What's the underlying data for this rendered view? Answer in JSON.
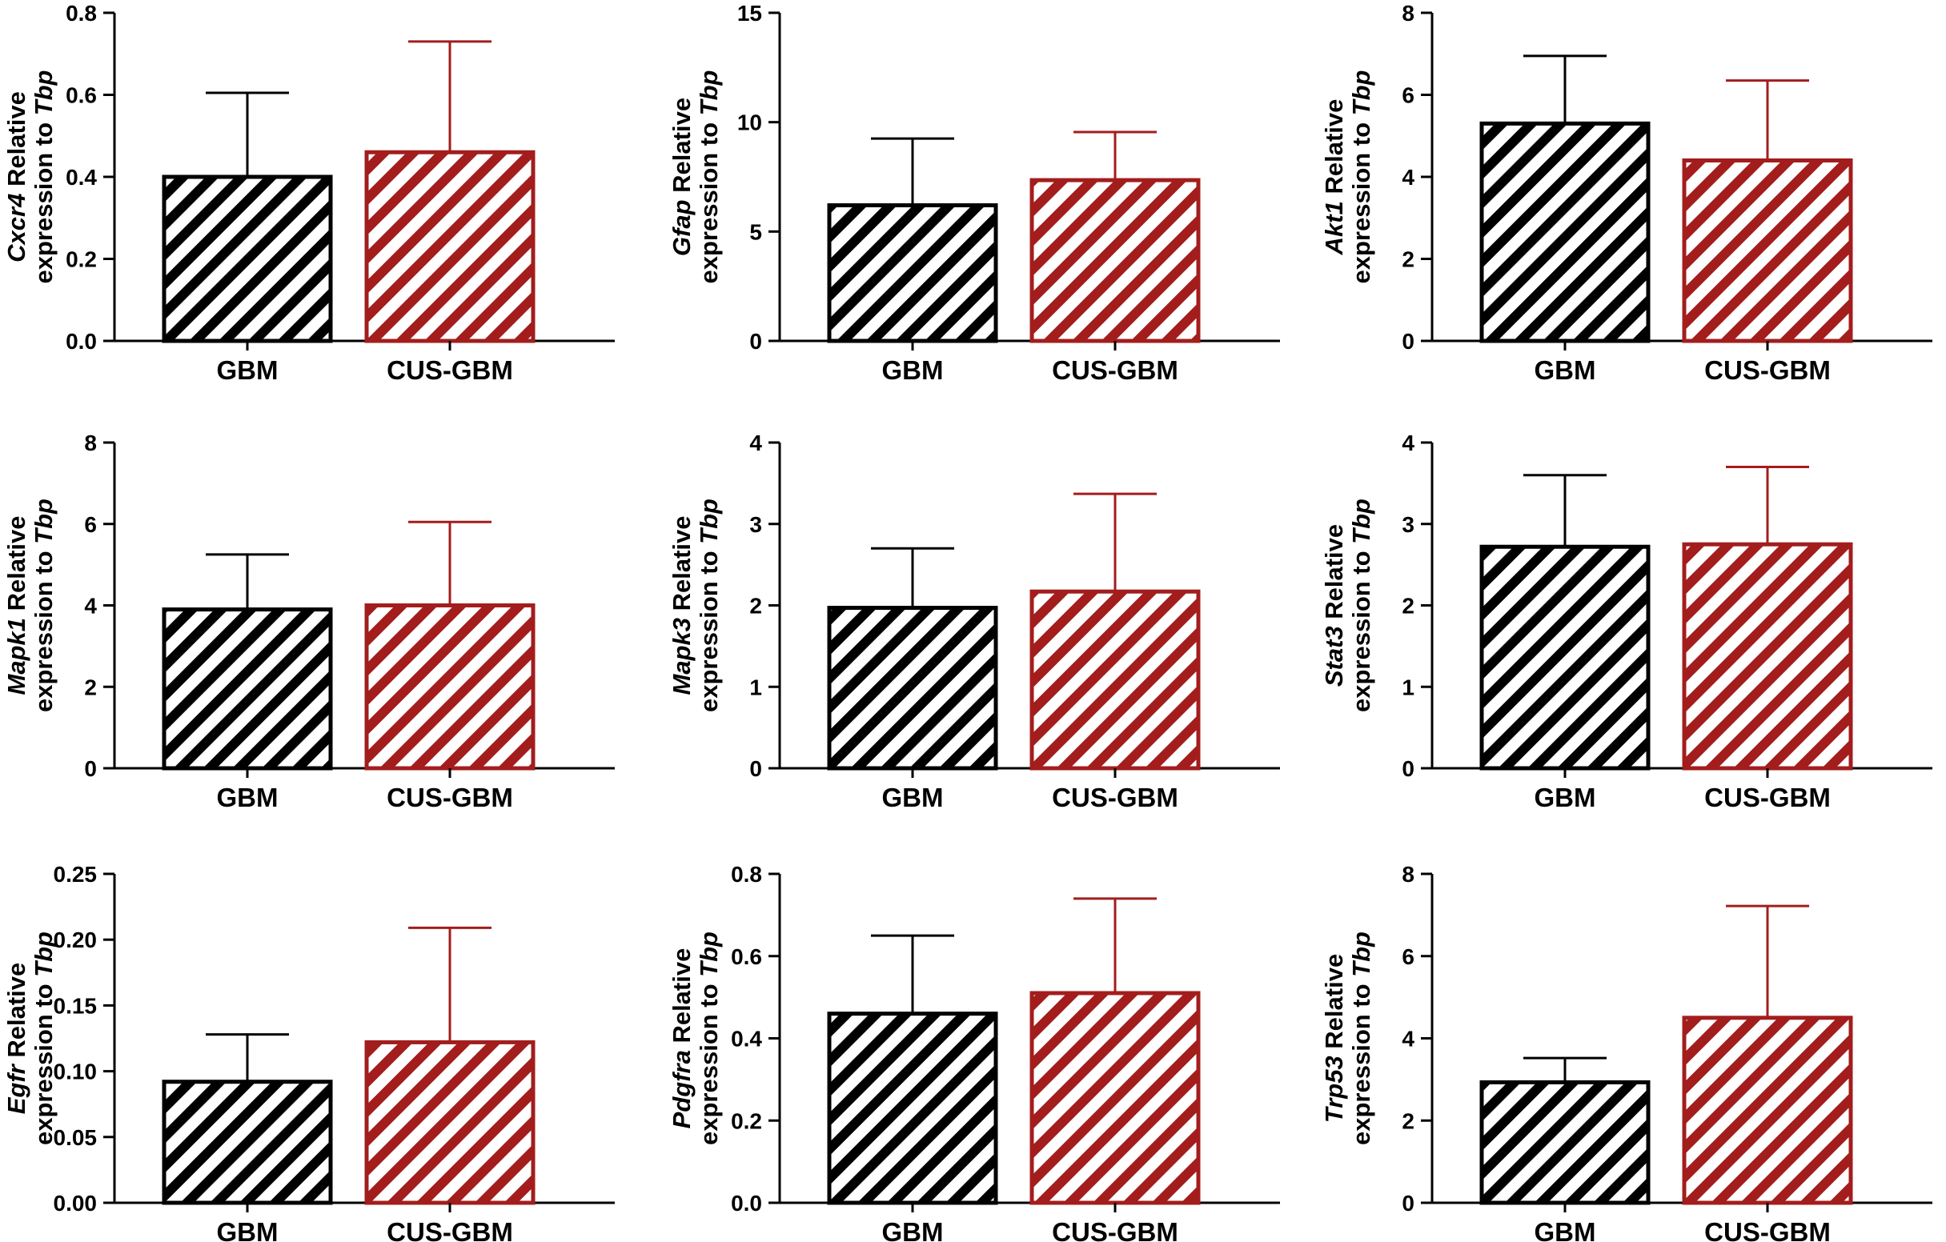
{
  "figure": {
    "ylabel_suffix_line1": "Relative",
    "ylabel_line2_prefix": "expression to",
    "ylabel_reference_gene": "Tbp"
  },
  "colors": {
    "GBM": "#000000",
    "CUS-GBM": "#a31d1d"
  },
  "chart_data": [
    {
      "type": "bar",
      "gene": "Cxcr4",
      "ylabel": "Cxcr4 Relative expression to Tbp",
      "categories": [
        "GBM",
        "CUS-GBM"
      ],
      "values": [
        0.4,
        0.46
      ],
      "errors_upper": [
        0.605,
        0.73
      ],
      "ylim": [
        0,
        0.8
      ],
      "ticks": [
        "0.0",
        "0.2",
        "0.4",
        "0.6",
        "0.8"
      ],
      "tick_values": [
        0,
        0.2,
        0.4,
        0.6,
        0.8
      ]
    },
    {
      "type": "bar",
      "gene": "Gfap",
      "ylabel": "Gfap Relative expression to Tbp",
      "categories": [
        "GBM",
        "CUS-GBM"
      ],
      "values": [
        6.2,
        7.35
      ],
      "errors_upper": [
        9.25,
        9.55
      ],
      "ylim": [
        0,
        15
      ],
      "ticks": [
        "0",
        "5",
        "10",
        "15"
      ],
      "tick_values": [
        0,
        5,
        10,
        15
      ]
    },
    {
      "type": "bar",
      "gene": "Akt1",
      "ylabel": "Akt1 Relative expression to Tbp",
      "categories": [
        "GBM",
        "CUS-GBM"
      ],
      "values": [
        5.3,
        4.4
      ],
      "errors_upper": [
        6.95,
        6.35
      ],
      "ylim": [
        0,
        8
      ],
      "ticks": [
        "0",
        "2",
        "4",
        "6",
        "8"
      ],
      "tick_values": [
        0,
        2,
        4,
        6,
        8
      ]
    },
    {
      "type": "bar",
      "gene": "Mapk1",
      "ylabel": "Mapk1 Relative expression to Tbp",
      "categories": [
        "GBM",
        "CUS-GBM"
      ],
      "values": [
        3.9,
        4.0
      ],
      "errors_upper": [
        5.25,
        6.05
      ],
      "ylim": [
        0,
        8
      ],
      "ticks": [
        "0",
        "2",
        "4",
        "6",
        "8"
      ],
      "tick_values": [
        0,
        2,
        4,
        6,
        8
      ]
    },
    {
      "type": "bar",
      "gene": "Mapk3",
      "ylabel": "Mapk3 Relative expression to Tbp",
      "categories": [
        "GBM",
        "CUS-GBM"
      ],
      "values": [
        1.97,
        2.17
      ],
      "errors_upper": [
        2.7,
        3.37
      ],
      "ylim": [
        0,
        4
      ],
      "ticks": [
        "0",
        "1",
        "2",
        "3",
        "4"
      ],
      "tick_values": [
        0,
        1,
        2,
        3,
        4
      ]
    },
    {
      "type": "bar",
      "gene": "Stat3",
      "ylabel": "Stat3 Relative expression to Tbp",
      "categories": [
        "GBM",
        "CUS-GBM"
      ],
      "values": [
        2.72,
        2.75
      ],
      "errors_upper": [
        3.6,
        3.7
      ],
      "ylim": [
        0,
        4
      ],
      "ticks": [
        "0",
        "1",
        "2",
        "3",
        "4"
      ],
      "tick_values": [
        0,
        1,
        2,
        3,
        4
      ]
    },
    {
      "type": "bar",
      "gene": "Egfr",
      "ylabel": "Egfr Relative expression to Tbp",
      "categories": [
        "GBM",
        "CUS-GBM"
      ],
      "values": [
        0.092,
        0.122
      ],
      "errors_upper": [
        0.128,
        0.209
      ],
      "ylim": [
        0,
        0.25
      ],
      "ticks": [
        "0.00",
        "0.05",
        "0.10",
        "0.15",
        "0.20",
        "0.25"
      ],
      "tick_values": [
        0,
        0.05,
        0.1,
        0.15,
        0.2,
        0.25
      ]
    },
    {
      "type": "bar",
      "gene": "Pdgfra",
      "ylabel": "Pdgfra Relative expression to Tbp",
      "categories": [
        "GBM",
        "CUS-GBM"
      ],
      "values": [
        0.46,
        0.51
      ],
      "errors_upper": [
        0.65,
        0.74
      ],
      "ylim": [
        0,
        0.8
      ],
      "ticks": [
        "0.0",
        "0.2",
        "0.4",
        "0.6",
        "0.8"
      ],
      "tick_values": [
        0,
        0.2,
        0.4,
        0.6,
        0.8
      ]
    },
    {
      "type": "bar",
      "gene": "Trp53",
      "ylabel": "Trp53 Relative expression to Tbp",
      "categories": [
        "GBM",
        "CUS-GBM"
      ],
      "values": [
        2.93,
        4.5
      ],
      "errors_upper": [
        3.52,
        7.22
      ],
      "ylim": [
        0,
        8
      ],
      "ticks": [
        "0",
        "2",
        "4",
        "6",
        "8"
      ],
      "tick_values": [
        0,
        2,
        4,
        6,
        8
      ]
    }
  ]
}
